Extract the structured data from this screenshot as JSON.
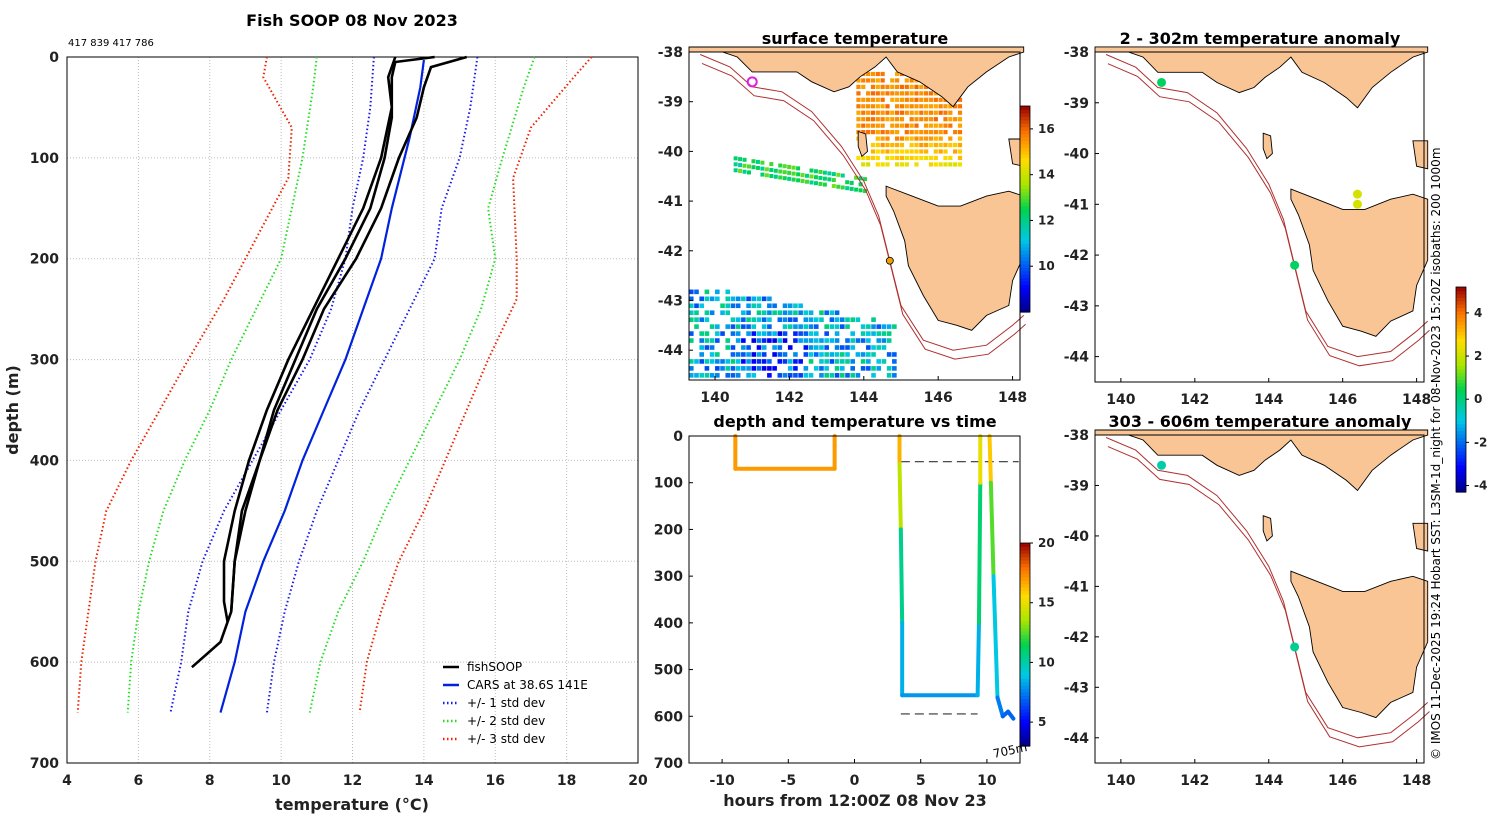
{
  "colors": {
    "fishsoop": "#000000",
    "cars": "#0022dd",
    "std1": "#1a1aee",
    "std2": "#22dd22",
    "std3": "#ee2200",
    "land": "#f9c594",
    "isobath": "#b03030"
  },
  "chart_data": [
    {
      "id": "profile",
      "type": "line",
      "title": "Fish SOOP 08 Nov 2023",
      "subtitle": "417 839 417 786",
      "xlabel": "temperature (°C)",
      "ylabel": "depth (m)",
      "xlim": [
        4,
        20
      ],
      "ylim": [
        0,
        700
      ],
      "xticks": [
        4,
        6,
        8,
        10,
        12,
        14,
        16,
        18,
        20
      ],
      "yticks": [
        0,
        100,
        200,
        300,
        400,
        500,
        600,
        700
      ],
      "legend": [
        "fishSOOP",
        "CARS at 38.6S 141E",
        "+/- 1 std dev",
        "+/- 2 std dev",
        "+/- 3 std dev"
      ],
      "cars": {
        "depth": [
          3,
          30,
          80,
          150,
          200,
          250,
          300,
          350,
          400,
          450,
          500,
          550,
          600,
          650
        ],
        "temp": [
          14,
          13.9,
          13.6,
          13.1,
          12.8,
          12.3,
          11.8,
          11.2,
          10.6,
          10.1,
          9.5,
          9.0,
          8.7,
          8.3
        ]
      },
      "std1_left": {
        "depth": [
          0,
          50,
          100,
          150,
          200,
          250,
          300,
          350,
          400,
          450,
          500,
          550,
          600,
          650
        ],
        "temp": [
          12.6,
          12.5,
          12.3,
          12.0,
          11.8,
          11.4,
          10.8,
          10.0,
          9.2,
          8.4,
          7.8,
          7.4,
          7.2,
          6.9
        ]
      },
      "std1_right": {
        "depth": [
          0,
          50,
          100,
          150,
          200,
          250,
          300,
          350,
          400,
          450,
          500,
          550,
          600,
          650
        ],
        "temp": [
          15.5,
          15.3,
          15.0,
          14.5,
          14.3,
          13.6,
          12.9,
          12.2,
          11.6,
          11.0,
          10.5,
          10.1,
          9.8,
          9.6
        ]
      },
      "std2_left": {
        "depth": [
          0,
          30,
          100,
          150,
          200,
          250,
          300,
          350,
          400,
          450,
          500,
          550,
          600,
          650
        ],
        "temp": [
          11.0,
          10.9,
          10.6,
          10.3,
          10.0,
          9.3,
          8.6,
          8.0,
          7.3,
          6.7,
          6.3,
          6.0,
          5.8,
          5.7
        ]
      },
      "std2_right": {
        "depth": [
          0,
          30,
          100,
          150,
          200,
          250,
          300,
          350,
          400,
          450,
          500,
          550,
          600,
          650
        ],
        "temp": [
          17.1,
          16.8,
          16.2,
          15.8,
          16.0,
          15.6,
          15.0,
          14.3,
          13.6,
          12.9,
          12.3,
          11.6,
          11.1,
          10.8
        ]
      },
      "std3_left": {
        "depth": [
          0,
          20,
          70,
          120,
          200,
          240,
          300,
          350,
          400,
          450,
          500,
          550,
          600,
          650
        ],
        "temp": [
          9.6,
          9.5,
          10.3,
          10.2,
          9.0,
          8.4,
          7.4,
          6.6,
          5.8,
          5.1,
          4.8,
          4.6,
          4.4,
          4.3
        ]
      },
      "std3_right": {
        "depth": [
          0,
          20,
          70,
          120,
          200,
          240,
          300,
          350,
          400,
          450,
          500,
          550,
          600,
          650
        ],
        "temp": [
          18.7,
          18.2,
          17.0,
          16.5,
          16.6,
          16.6,
          15.8,
          15.2,
          14.6,
          14.0,
          13.3,
          12.8,
          12.4,
          12.2
        ]
      },
      "fishsoop": [
        {
          "depth": [
            0,
            5,
            20,
            60,
            100,
            150,
            200,
            250,
            300,
            350,
            400,
            450,
            500,
            550,
            580,
            605
          ],
          "temp": [
            14.3,
            13.2,
            13.1,
            13.1,
            12.9,
            12.5,
            11.8,
            11.0,
            10.4,
            9.8,
            9.4,
            8.9,
            8.7,
            8.6,
            8.3,
            7.5
          ]
        },
        {
          "depth": [
            0,
            10,
            30,
            60,
            100,
            150,
            200,
            250,
            300,
            350,
            400,
            450,
            500,
            550
          ],
          "temp": [
            15.2,
            14.2,
            14.0,
            13.8,
            13.3,
            12.8,
            12.1,
            11.2,
            10.6,
            9.9,
            9.4,
            9.0,
            8.7,
            8.6
          ]
        },
        {
          "depth": [
            0,
            20,
            50,
            100,
            150,
            200,
            250,
            300,
            350,
            400,
            450,
            500,
            540,
            560
          ],
          "temp": [
            13.2,
            13.0,
            13.1,
            12.8,
            12.3,
            11.6,
            10.9,
            10.2,
            9.6,
            9.1,
            8.7,
            8.4,
            8.4,
            8.5
          ]
        }
      ]
    },
    {
      "id": "sst",
      "type": "heatmap",
      "title": "surface temperature",
      "xlim": [
        139.3,
        148.2
      ],
      "ylim": [
        -44.6,
        -38
      ],
      "xticks": [
        140,
        142,
        144,
        146,
        148
      ],
      "yticks": [
        -38,
        -39,
        -40,
        -41,
        -42,
        -43,
        -44
      ],
      "colorbar": {
        "min": 8,
        "max": 17,
        "ticks": [
          10,
          12,
          14,
          16
        ]
      }
    },
    {
      "id": "anom1",
      "type": "scatter",
      "title": "2 - 302m temperature anomaly",
      "xlim": [
        139.3,
        148.2
      ],
      "ylim": [
        -44.5,
        -38
      ],
      "xticks": [
        140,
        142,
        144,
        146,
        148
      ],
      "yticks": [
        -38,
        -39,
        -40,
        -41,
        -42,
        -43,
        -44
      ],
      "points": [
        {
          "lon": 141.1,
          "lat": -38.6,
          "anom": 0.3
        },
        {
          "lon": 144.7,
          "lat": -42.2,
          "anom": 0.3
        },
        {
          "lon": 146.4,
          "lat": -40.8,
          "anom": 2.2
        },
        {
          "lon": 146.4,
          "lat": -41.0,
          "anom": 2.2
        }
      ]
    },
    {
      "id": "anom2",
      "type": "scatter",
      "title": "303 - 606m temperature anomaly",
      "xlim": [
        139.3,
        148.2
      ],
      "ylim": [
        -44.5,
        -38
      ],
      "xticks": [
        140,
        142,
        144,
        146,
        148
      ],
      "yticks": [
        -38,
        -39,
        -40,
        -41,
        -42,
        -43,
        -44
      ],
      "points": [
        {
          "lon": 141.1,
          "lat": -38.6,
          "anom": -0.4
        },
        {
          "lon": 144.7,
          "lat": -42.2,
          "anom": -0.2
        }
      ]
    },
    {
      "id": "depthtime",
      "type": "line",
      "title": "depth and temperature vs time",
      "xlabel": "hours from 12:00Z 08 Nov 23",
      "xlim": [
        -12.5,
        12.5
      ],
      "ylim": [
        0,
        700
      ],
      "xticks": [
        -10,
        -5,
        0,
        5,
        10
      ],
      "yticks": [
        0,
        100,
        200,
        300,
        400,
        500,
        600,
        700
      ],
      "annotation": "705m",
      "colorbar": {
        "min": 3,
        "max": 20,
        "ticks": [
          5,
          10,
          15,
          20
        ]
      },
      "tracks": [
        {
          "x": [
            -9,
            -9,
            -9,
            -1.5,
            -1.5,
            -1.5
          ],
          "y": [
            0,
            20,
            70,
            70,
            20,
            0
          ],
          "t": [
            17,
            17,
            17,
            17,
            17,
            17
          ]
        },
        {
          "x": [
            3.4,
            3.4,
            3.5,
            3.6,
            3.6,
            9.3,
            9.4,
            9.5,
            9.5
          ],
          "y": [
            0,
            60,
            200,
            400,
            555,
            555,
            400,
            100,
            0
          ],
          "t": [
            17,
            16,
            12,
            9,
            8,
            8,
            9,
            13,
            17
          ]
        },
        {
          "x": [
            10.2,
            10.3,
            10.5,
            10.8,
            11.2,
            11.6,
            12
          ],
          "y": [
            0,
            100,
            300,
            560,
            600,
            590,
            605
          ],
          "t": [
            17,
            15,
            10,
            8,
            7,
            7,
            7
          ]
        }
      ],
      "dashed": [
        {
          "x": [
            -9,
            -1.5
          ],
          "y": 70
        },
        {
          "x": [
            3.5,
            12.4
          ],
          "y": 55
        },
        {
          "x": [
            3.5,
            9.3
          ],
          "y": 595
        }
      ],
      "dashed_label": "",
      "y_note": ""
    },
    {
      "id": "anomcb",
      "type": "colorbar",
      "min": -4.3,
      "max": 5.2,
      "ticks": [
        -4,
        -2,
        0,
        2,
        4
      ]
    }
  ],
  "footer_note": "© IMOS 11-Dec-2025 19:24 Hobart SST: L3SM-1d_night for 08-Nov-2023 15:20Z isobaths: 200  1000m"
}
